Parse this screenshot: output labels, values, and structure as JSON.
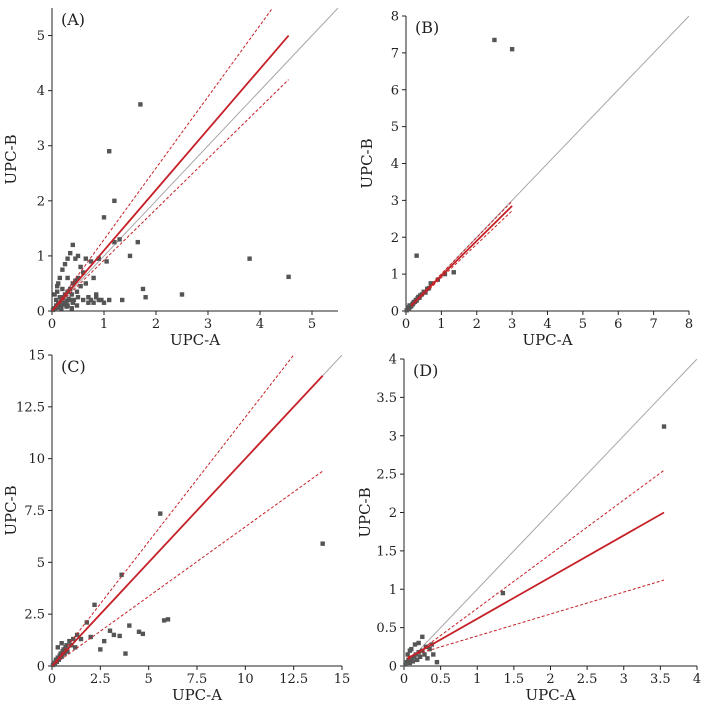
{
  "colors": {
    "fit": "#c62127",
    "identity": "#a6a6a6",
    "points": "#555555",
    "axis": "#222222"
  },
  "chart_data": [
    {
      "type": "scatter",
      "title": "(A)",
      "xlabel": "UPC-A",
      "ylabel": "UPC-B",
      "xlim": [
        0,
        5.5
      ],
      "ylim": [
        0,
        5.5
      ],
      "xticks": [
        0,
        1,
        2,
        3,
        4,
        5
      ],
      "xtick_labels": [
        "0",
        "1",
        "2",
        "3",
        "4",
        "5"
      ],
      "yticks": [
        0,
        1,
        2,
        3,
        4,
        5
      ],
      "ytick_labels": [
        "0",
        "1",
        "2",
        "3",
        "4",
        "5"
      ],
      "identity_line": [
        [
          0,
          0
        ],
        [
          5.5,
          5.5
        ]
      ],
      "regression_line": [
        [
          0,
          0
        ],
        [
          4.55,
          5.0
        ]
      ],
      "ci_upper": [
        [
          0,
          0
        ],
        [
          4.55,
          5.9
        ]
      ],
      "ci_lower": [
        [
          0,
          0
        ],
        [
          4.55,
          4.2
        ]
      ],
      "points": [
        [
          0.02,
          0.02
        ],
        [
          0.04,
          0.05
        ],
        [
          0.06,
          0.03
        ],
        [
          0.08,
          0.1
        ],
        [
          0.1,
          0.06
        ],
        [
          0.12,
          0.15
        ],
        [
          0.15,
          0.08
        ],
        [
          0.18,
          0.2
        ],
        [
          0.2,
          0.12
        ],
        [
          0.22,
          0.25
        ],
        [
          0.25,
          0.3
        ],
        [
          0.28,
          0.18
        ],
        [
          0.3,
          0.35
        ],
        [
          0.32,
          0.22
        ],
        [
          0.35,
          0.4
        ],
        [
          0.38,
          0.3
        ],
        [
          0.4,
          0.5
        ],
        [
          0.42,
          0.2
        ],
        [
          0.45,
          0.55
        ],
        [
          0.48,
          0.35
        ],
        [
          0.5,
          0.6
        ],
        [
          0.55,
          0.45
        ],
        [
          0.6,
          0.7
        ],
        [
          0.65,
          0.5
        ],
        [
          0.7,
          0.25
        ],
        [
          0.75,
          0.9
        ],
        [
          0.8,
          0.6
        ],
        [
          0.85,
          0.3
        ],
        [
          0.9,
          0.95
        ],
        [
          0.95,
          0.2
        ],
        [
          0.05,
          0.3
        ],
        [
          0.1,
          0.45
        ],
        [
          0.15,
          0.6
        ],
        [
          0.2,
          0.75
        ],
        [
          0.25,
          0.85
        ],
        [
          0.3,
          0.95
        ],
        [
          0.35,
          1.05
        ],
        [
          0.4,
          1.2
        ],
        [
          0.45,
          0.95
        ],
        [
          0.5,
          1.0
        ],
        [
          0.1,
          0.35
        ],
        [
          0.15,
          0.25
        ],
        [
          0.2,
          0.4
        ],
        [
          0.25,
          0.15
        ],
        [
          0.3,
          0.1
        ],
        [
          0.35,
          0.2
        ],
        [
          0.4,
          0.15
        ],
        [
          0.5,
          0.25
        ],
        [
          0.6,
          0.2
        ],
        [
          0.7,
          0.15
        ],
        [
          0.75,
          0.2
        ],
        [
          0.8,
          0.15
        ],
        [
          0.85,
          0.25
        ],
        [
          0.9,
          0.2
        ],
        [
          1.0,
          0.15
        ],
        [
          1.05,
          0.9
        ],
        [
          1.1,
          0.2
        ],
        [
          1.2,
          1.25
        ],
        [
          1.3,
          1.3
        ],
        [
          1.35,
          0.2
        ],
        [
          1.0,
          1.7
        ],
        [
          1.1,
          2.9
        ],
        [
          1.2,
          2.0
        ],
        [
          1.5,
          1.0
        ],
        [
          1.65,
          1.25
        ],
        [
          1.7,
          3.75
        ],
        [
          1.75,
          0.4
        ],
        [
          1.8,
          0.25
        ],
        [
          2.5,
          0.3
        ],
        [
          3.8,
          0.95
        ],
        [
          4.55,
          0.62
        ],
        [
          0.55,
          0.8
        ],
        [
          0.65,
          0.95
        ],
        [
          0.3,
          0.6
        ],
        [
          0.12,
          0.5
        ],
        [
          0.08,
          0.2
        ],
        [
          0.18,
          0.05
        ],
        [
          0.28,
          0.08
        ],
        [
          0.38,
          0.05
        ],
        [
          0.48,
          0.1
        ]
      ]
    },
    {
      "type": "scatter",
      "title": "(B)",
      "xlabel": "UPC-A",
      "ylabel": "UPC-B",
      "xlim": [
        0,
        8
      ],
      "ylim": [
        0,
        8
      ],
      "xticks": [
        0,
        1,
        2,
        3,
        4,
        5,
        6,
        7,
        8
      ],
      "xtick_labels": [
        "0",
        "1",
        "2",
        "3",
        "4",
        "5",
        "6",
        "7",
        "8"
      ],
      "yticks": [
        0,
        1,
        2,
        3,
        4,
        5,
        6,
        7,
        8
      ],
      "ytick_labels": [
        "0",
        "1",
        "2",
        "3",
        "4",
        "5",
        "6",
        "7",
        "8"
      ],
      "identity_line": [
        [
          0,
          0
        ],
        [
          8,
          8
        ]
      ],
      "regression_line": [
        [
          0.15,
          0.15
        ],
        [
          3.0,
          2.85
        ]
      ],
      "ci_upper": [
        [
          0.15,
          0.17
        ],
        [
          3.0,
          2.98
        ]
      ],
      "ci_lower": [
        [
          0.15,
          0.13
        ],
        [
          3.0,
          2.72
        ]
      ],
      "points": [
        [
          0.02,
          0.02
        ],
        [
          0.05,
          0.05
        ],
        [
          0.08,
          0.06
        ],
        [
          0.1,
          0.1
        ],
        [
          0.12,
          0.12
        ],
        [
          0.15,
          0.13
        ],
        [
          0.18,
          0.18
        ],
        [
          0.2,
          0.2
        ],
        [
          0.22,
          0.24
        ],
        [
          0.25,
          0.25
        ],
        [
          0.28,
          0.3
        ],
        [
          0.3,
          0.28
        ],
        [
          0.33,
          0.35
        ],
        [
          0.35,
          0.38
        ],
        [
          0.38,
          0.36
        ],
        [
          0.4,
          0.42
        ],
        [
          0.45,
          0.45
        ],
        [
          0.5,
          0.52
        ],
        [
          0.55,
          0.5
        ],
        [
          0.6,
          0.6
        ],
        [
          0.65,
          0.62
        ],
        [
          0.7,
          0.75
        ],
        [
          0.1,
          0.15
        ],
        [
          0.05,
          0.1
        ],
        [
          0.3,
          1.5
        ],
        [
          0.9,
          0.85
        ],
        [
          1.1,
          1.0
        ],
        [
          1.35,
          1.05
        ],
        [
          2.5,
          7.35
        ],
        [
          3.0,
          7.1
        ]
      ]
    },
    {
      "type": "scatter",
      "title": "(C)",
      "xlabel": "UPC-A",
      "ylabel": "UPC-B",
      "xlim": [
        0,
        15
      ],
      "ylim": [
        0,
        15
      ],
      "xticks": [
        0,
        2.5,
        5,
        7.5,
        10,
        12.5,
        15
      ],
      "xtick_labels": [
        "0",
        "2.5",
        "5",
        "7.5",
        "10",
        "12.5",
        "15"
      ],
      "yticks": [
        0,
        2.5,
        5,
        7.5,
        10,
        12.5,
        15
      ],
      "ytick_labels": [
        "0",
        "2.5",
        "5",
        "7.5",
        "10",
        "12.5",
        "15"
      ],
      "identity_line": [
        [
          0,
          0
        ],
        [
          15,
          15
        ]
      ],
      "regression_line": [
        [
          0,
          0
        ],
        [
          14.0,
          14.0
        ]
      ],
      "ci_upper": [
        [
          0,
          0
        ],
        [
          12.5,
          15.0
        ]
      ],
      "ci_lower": [
        [
          0,
          0
        ],
        [
          14.0,
          9.4
        ]
      ],
      "points": [
        [
          0.05,
          0.05
        ],
        [
          0.1,
          0.15
        ],
        [
          0.15,
          0.1
        ],
        [
          0.2,
          0.3
        ],
        [
          0.25,
          0.2
        ],
        [
          0.3,
          0.4
        ],
        [
          0.35,
          0.3
        ],
        [
          0.4,
          0.5
        ],
        [
          0.45,
          0.6
        ],
        [
          0.5,
          0.45
        ],
        [
          0.55,
          0.7
        ],
        [
          0.6,
          0.8
        ],
        [
          0.65,
          0.6
        ],
        [
          0.7,
          0.9
        ],
        [
          0.75,
          1.0
        ],
        [
          0.8,
          0.7
        ],
        [
          0.9,
          1.2
        ],
        [
          1.0,
          1.0
        ],
        [
          1.1,
          1.3
        ],
        [
          1.2,
          0.9
        ],
        [
          1.3,
          1.5
        ],
        [
          1.5,
          1.3
        ],
        [
          1.8,
          2.1
        ],
        [
          2.0,
          1.4
        ],
        [
          2.2,
          2.95
        ],
        [
          2.5,
          0.8
        ],
        [
          2.7,
          1.2
        ],
        [
          3.0,
          1.7
        ],
        [
          3.2,
          1.5
        ],
        [
          3.5,
          1.45
        ],
        [
          3.6,
          4.4
        ],
        [
          3.8,
          0.6
        ],
        [
          4.0,
          1.95
        ],
        [
          4.5,
          1.65
        ],
        [
          4.7,
          1.55
        ],
        [
          5.6,
          7.35
        ],
        [
          5.8,
          2.2
        ],
        [
          6.0,
          2.25
        ],
        [
          14.0,
          5.9
        ],
        [
          0.3,
          0.9
        ],
        [
          0.5,
          1.1
        ]
      ]
    },
    {
      "type": "scatter",
      "title": "(D)",
      "xlabel": "UPC-A",
      "ylabel": "UPC-B",
      "xlim": [
        0,
        4
      ],
      "ylim": [
        0,
        4
      ],
      "xticks": [
        0,
        0.5,
        1,
        1.5,
        2,
        2.5,
        3,
        3.5,
        4
      ],
      "xtick_labels": [
        "0",
        "0.5",
        "1",
        "1.5",
        "2",
        "2.5",
        "3",
        "3.5",
        "4"
      ],
      "yticks": [
        0,
        0.5,
        1,
        1.5,
        2,
        2.5,
        3,
        3.5,
        4
      ],
      "ytick_labels": [
        "0",
        "0.5",
        "1",
        "1.5",
        "2",
        "2.5",
        "3",
        "3.5",
        "4"
      ],
      "identity_line": [
        [
          0,
          0
        ],
        [
          4,
          4
        ]
      ],
      "regression_line": [
        [
          0.05,
          0.1
        ],
        [
          3.55,
          2.0
        ]
      ],
      "ci_upper": [
        [
          0.05,
          0.08
        ],
        [
          3.55,
          2.55
        ]
      ],
      "ci_lower": [
        [
          0.05,
          0.12
        ],
        [
          3.55,
          1.12
        ]
      ],
      "points": [
        [
          0.02,
          0.02
        ],
        [
          0.04,
          0.05
        ],
        [
          0.06,
          0.08
        ],
        [
          0.08,
          0.04
        ],
        [
          0.1,
          0.1
        ],
        [
          0.12,
          0.06
        ],
        [
          0.14,
          0.12
        ],
        [
          0.16,
          0.15
        ],
        [
          0.18,
          0.08
        ],
        [
          0.2,
          0.18
        ],
        [
          0.22,
          0.12
        ],
        [
          0.25,
          0.2
        ],
        [
          0.28,
          0.15
        ],
        [
          0.3,
          0.25
        ],
        [
          0.32,
          0.1
        ],
        [
          0.35,
          0.22
        ],
        [
          0.38,
          0.28
        ],
        [
          0.4,
          0.15
        ],
        [
          0.45,
          0.05
        ],
        [
          0.1,
          0.22
        ],
        [
          0.15,
          0.28
        ],
        [
          0.2,
          0.3
        ],
        [
          0.25,
          0.38
        ],
        [
          0.05,
          0.15
        ],
        [
          0.08,
          0.2
        ],
        [
          1.35,
          0.95
        ],
        [
          3.55,
          3.12
        ]
      ]
    }
  ]
}
